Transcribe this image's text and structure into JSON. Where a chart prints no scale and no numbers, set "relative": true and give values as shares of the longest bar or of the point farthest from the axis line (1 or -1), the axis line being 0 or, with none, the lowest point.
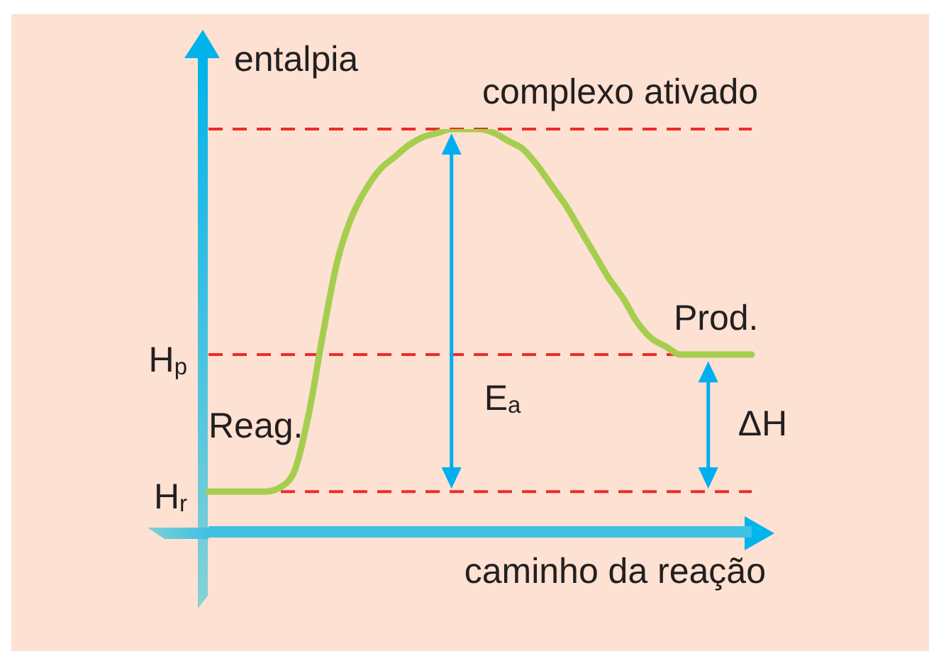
{
  "chart_data": {
    "type": "line",
    "xlabel": "caminho da reação",
    "ylabel": "entalpia",
    "relative": true,
    "line_style": "solid",
    "categories": [
      null,
      null,
      null,
      null,
      null,
      null,
      null,
      null,
      null,
      null,
      null,
      null,
      null,
      null,
      null,
      null,
      null,
      null,
      null,
      null,
      null,
      null,
      null,
      null,
      null,
      null,
      null,
      null,
      null,
      null,
      null,
      null,
      null,
      null,
      null,
      null,
      null,
      null,
      null
    ],
    "series": [
      {
        "color": "#a6ce4e",
        "values": [
          0.1,
          0.1,
          0.1,
          0.1,
          0.1,
          0.11,
          0.15,
          0.29,
          0.49,
          0.67,
          0.78,
          0.85,
          0.9,
          0.93,
          0.96,
          0.98,
          0.99,
          1.0,
          1.0,
          1.0,
          0.99,
          0.97,
          0.95,
          0.91,
          0.86,
          0.81,
          0.75,
          0.69,
          0.63,
          0.58,
          0.52,
          0.48,
          0.46,
          0.44,
          0.44,
          0.44,
          0.44,
          0.44,
          0.44
        ]
      }
    ],
    "ref_lines": [
      {
        "axis": "y",
        "value": 1.0,
        "color": "#ee2a2b",
        "line_style": "dashed"
      },
      {
        "axis": "y",
        "value": 0.44,
        "label": "H$_{p}$",
        "color": "#ee2a2b",
        "line_style": "dashed"
      },
      {
        "axis": "y",
        "value": 0.1,
        "label": "H$_{r}$",
        "color": "#ee2a2b",
        "line_style": "dashed"
      }
    ],
    "annotations": [
      "complexo ativado",
      "Reag.",
      "Prod.",
      "E$_{a}$",
      "ΔH"
    ]
  }
}
